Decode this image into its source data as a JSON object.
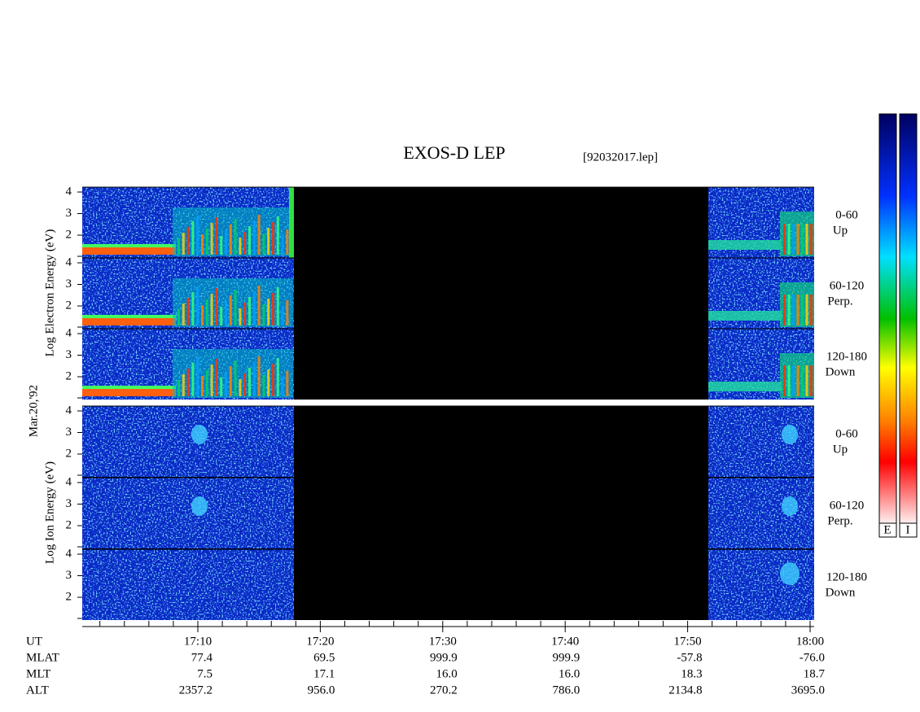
{
  "title": "EXOS-D LEP",
  "file": "[92032017.lep]",
  "date": "Mar.20,'92",
  "electron": {
    "ylabel": "Log  Electron  Energy (eV)",
    "panels": [
      {
        "range": "0-60",
        "dir": "Up",
        "yticks": [
          "4",
          "3",
          "2"
        ]
      },
      {
        "range": "60-120",
        "dir": "Perp.",
        "yticks": [
          "4",
          "3",
          "2"
        ]
      },
      {
        "range": "120-180",
        "dir": "Down",
        "yticks": [
          "4",
          "3",
          "2"
        ]
      }
    ]
  },
  "ion": {
    "ylabel": "Log  Ion  Energy (eV)",
    "panels": [
      {
        "range": "0-60",
        "dir": "Up",
        "yticks": [
          "4",
          "3",
          "2"
        ]
      },
      {
        "range": "60-120",
        "dir": "Perp.",
        "yticks": [
          "4",
          "3",
          "2"
        ]
      },
      {
        "range": "120-180",
        "dir": "Down",
        "yticks": [
          "4",
          "3",
          "2"
        ]
      }
    ]
  },
  "colorbar": {
    "labels": [
      "E",
      "I"
    ]
  },
  "ephemeris": {
    "row_labels": [
      "UT",
      "MLAT",
      "MLT",
      "ALT"
    ],
    "columns": [
      [
        "17:10",
        "77.4",
        "7.5",
        "2357.2"
      ],
      [
        "17:20",
        "69.5",
        "17.1",
        "956.0"
      ],
      [
        "17:30",
        "999.9",
        "16.0",
        "270.2"
      ],
      [
        "17:40",
        "999.9",
        "16.0",
        "786.0"
      ],
      [
        "17:50",
        "-57.8",
        "18.3",
        "2134.8"
      ],
      [
        "18:00",
        "-76.0",
        "18.7",
        "3695.0"
      ]
    ]
  }
}
